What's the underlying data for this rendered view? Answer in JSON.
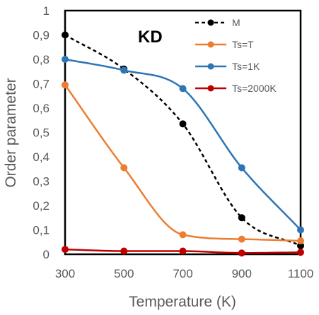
{
  "chart_data": {
    "type": "line",
    "title": "",
    "annotation": "KD",
    "xlabel": "Temperature (K)",
    "ylabel": "Order parameter",
    "xlim": [
      300,
      1100
    ],
    "ylim": [
      0,
      1
    ],
    "x_ticks": [
      300,
      500,
      700,
      900,
      1100
    ],
    "y_ticks": [
      "0",
      "0,1",
      "0,2",
      "0,3",
      "0,4",
      "0,5",
      "0,6",
      "0,7",
      "0,8",
      "0,9",
      "1"
    ],
    "legend_position": "top-right",
    "grid": false,
    "x": [
      300,
      500,
      700,
      900,
      1100
    ],
    "series": [
      {
        "name": "M",
        "values": [
          0.9,
          0.76,
          0.535,
          0.15,
          0.035
        ],
        "color": "#000000",
        "dashed": true
      },
      {
        "name": "Ts=T",
        "values": [
          0.695,
          0.355,
          0.08,
          0.062,
          0.055
        ],
        "color": "#ED7D31",
        "dashed": false
      },
      {
        "name": "Ts=1K",
        "values": [
          0.8,
          0.755,
          0.68,
          0.355,
          0.1
        ],
        "color": "#2E75B6",
        "dashed": false
      },
      {
        "name": "Ts=2000K",
        "values": [
          0.02,
          0.013,
          0.013,
          0.005,
          0.008
        ],
        "color": "#C00000",
        "dashed": false
      }
    ]
  }
}
